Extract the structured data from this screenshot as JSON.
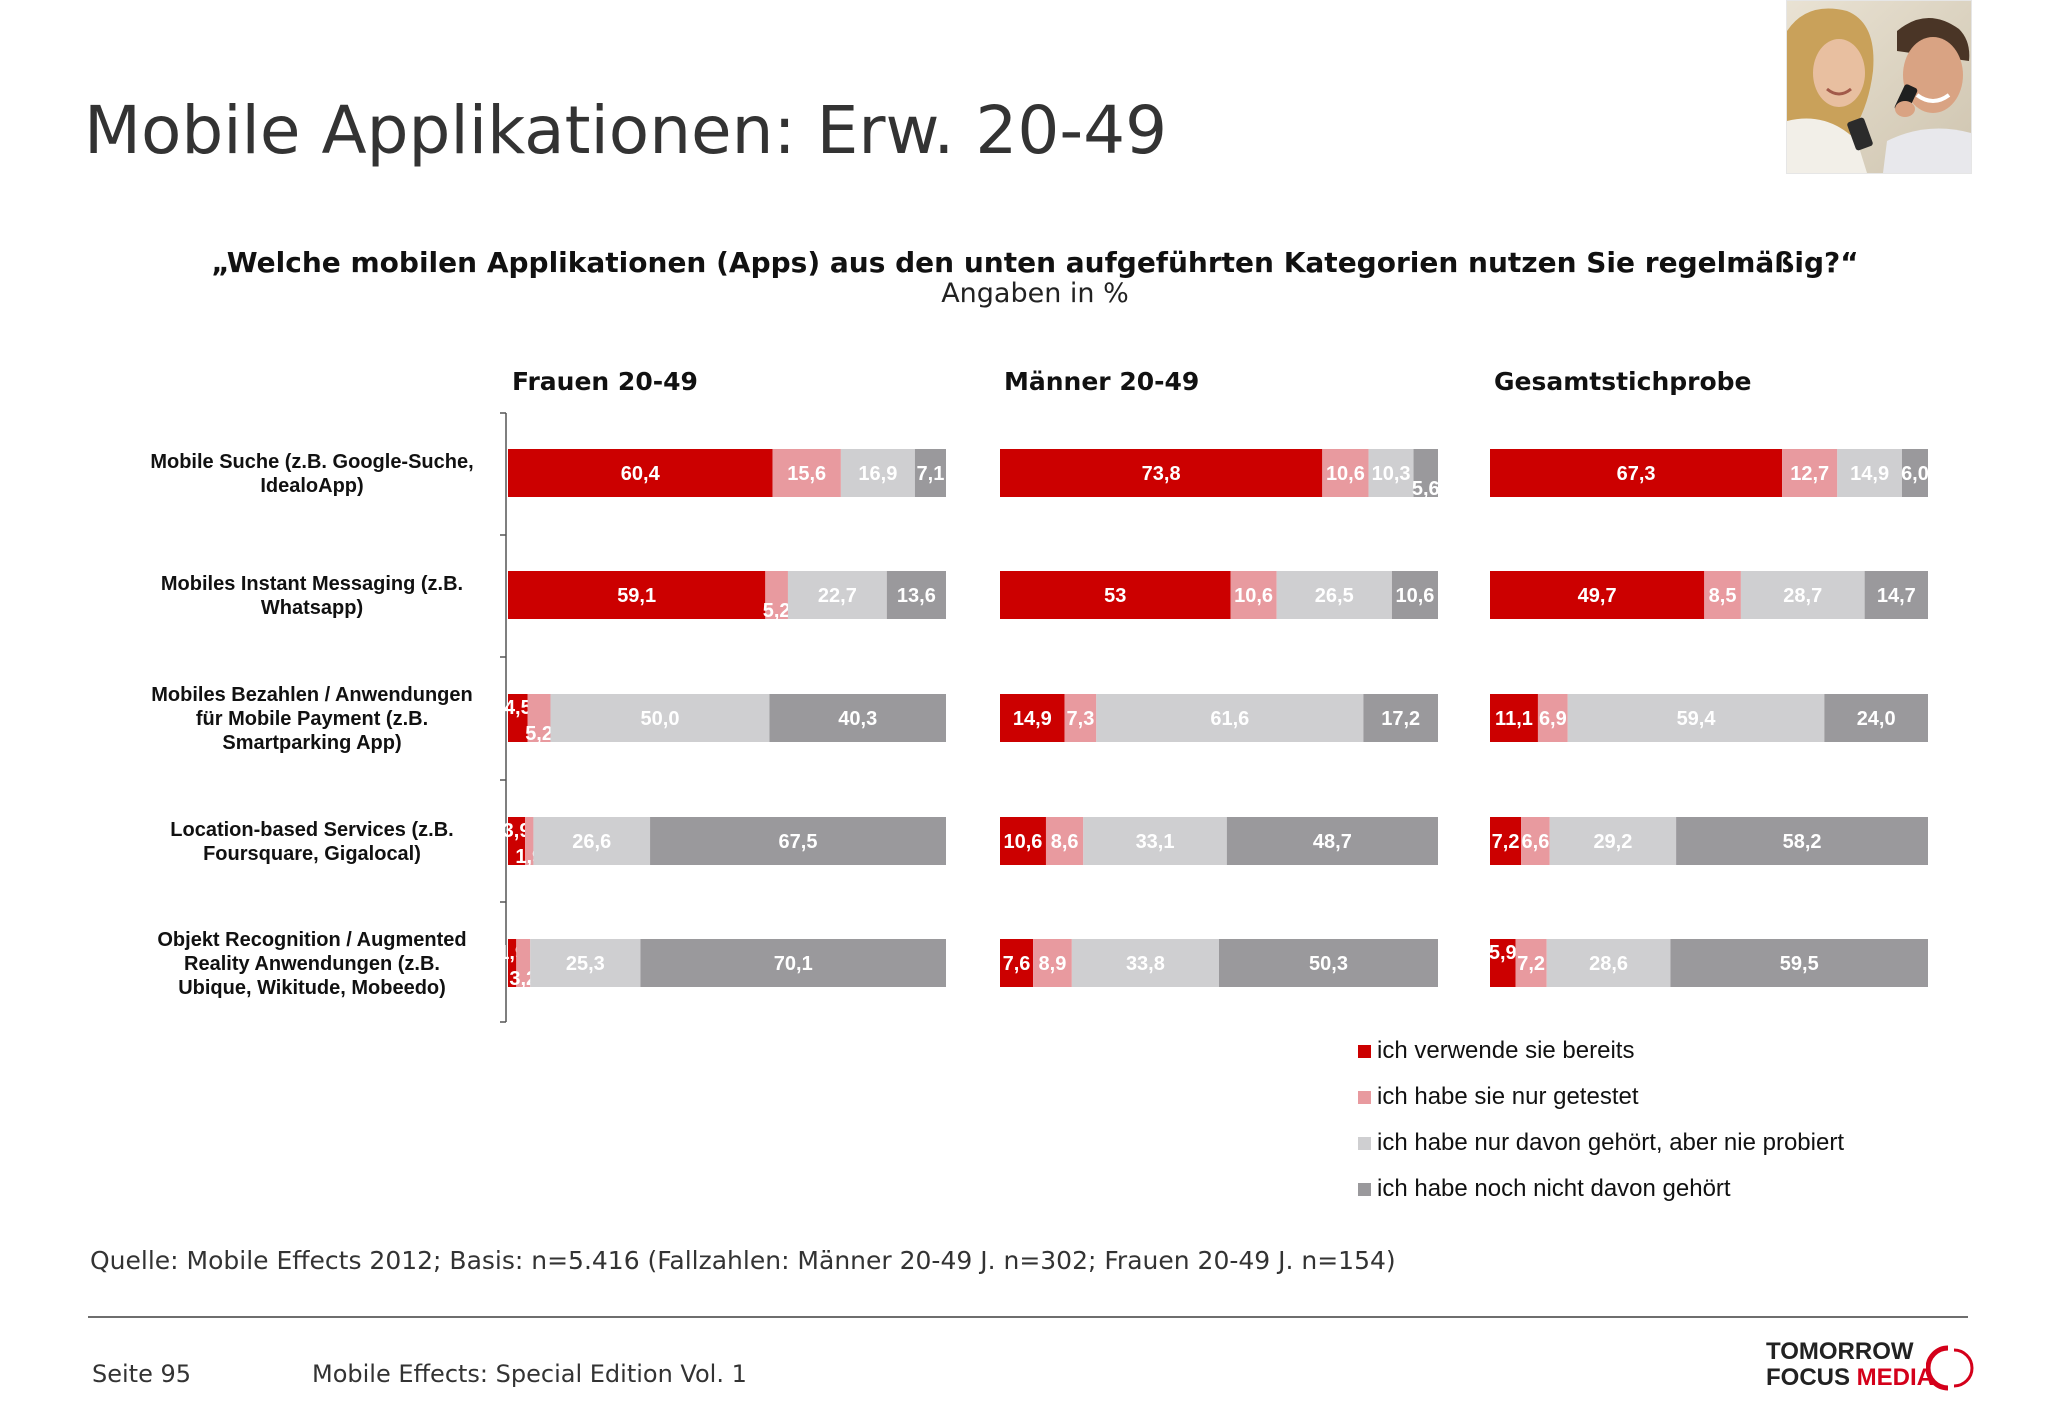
{
  "header": {
    "title": "Mobile Applikationen: Erw. 20-49"
  },
  "question": {
    "text": "„Welche mobilen Applikationen (Apps) aus den unten aufgeführten Kategorien nutzen Sie regelmäßig?“",
    "unit": "Angaben in %"
  },
  "icons": {
    "photo": "couple-with-phones-photo",
    "logo": "tomorrow-focus-media-logo"
  },
  "chart_data": {
    "type": "bar",
    "orientation": "horizontal",
    "stacked": true,
    "xlim": [
      0,
      100
    ],
    "categories": [
      "Mobile Suche (z.B. Google-Suche, IdealoApp)",
      "Mobiles Instant Messaging (z.B. Whatsapp)",
      "Mobiles Bezahlen / Anwendungen für Mobile Payment (z.B. Smartparking App)",
      "Location-based Services (z.B. Foursquare, Gigalocal)",
      "Objekt Recognition / Augmented Reality Anwendungen (z.B. Ubique, Wikitude, Mobeedo)"
    ],
    "category_lines": [
      [
        "Mobile Suche (z.B. Google-Suche,",
        "IdealoApp)"
      ],
      [
        "Mobiles Instant Messaging (z.B.",
        "Whatsapp)"
      ],
      [
        "Mobiles Bezahlen / Anwendungen",
        "für Mobile Payment (z.B.",
        "Smartparking App)"
      ],
      [
        "Location-based Services (z.B.",
        "Foursquare, Gigalocal)"
      ],
      [
        "Objekt Recognition / Augmented",
        "Reality Anwendungen (z.B.",
        "Ubique, Wikitude, Mobeedo)"
      ]
    ],
    "series": [
      {
        "name": "ich verwende sie bereits",
        "color": "#cc0000"
      },
      {
        "name": "ich habe sie nur getestet",
        "color": "#e89a9f"
      },
      {
        "name": "ich habe nur davon gehört, aber nie probiert",
        "color": "#cfcfd1"
      },
      {
        "name": "ich habe noch nicht davon gehört",
        "color": "#9a999c"
      }
    ],
    "groups": [
      {
        "name": "Frauen 20-49",
        "values": [
          [
            60.4,
            15.6,
            16.9,
            7.1
          ],
          [
            59.1,
            5.2,
            22.7,
            13.6
          ],
          [
            4.5,
            5.2,
            50.0,
            40.3
          ],
          [
            3.9,
            1.9,
            26.6,
            67.5
          ],
          [
            1.9,
            3.2,
            25.3,
            70.1
          ]
        ],
        "labels": [
          [
            "60,4",
            "15,6",
            "16,9",
            "7,1"
          ],
          [
            "59,1",
            "5,2",
            "22,7",
            "13,6"
          ],
          [
            "4,5",
            "5,2",
            "50,0",
            "40,3"
          ],
          [
            "3,9",
            "1,9",
            "26,6",
            "67,5"
          ],
          [
            "1,9",
            "3,2",
            "25,3",
            "70,1"
          ]
        ]
      },
      {
        "name": "Männer 20-49",
        "values": [
          [
            73.8,
            10.6,
            10.3,
            5.6
          ],
          [
            53.0,
            10.6,
            26.5,
            10.6
          ],
          [
            14.9,
            7.3,
            61.6,
            17.2
          ],
          [
            10.6,
            8.6,
            33.1,
            48.7
          ],
          [
            7.6,
            8.9,
            33.8,
            50.3
          ]
        ],
        "labels": [
          [
            "73,8",
            "10,6",
            "10,3",
            "5,6"
          ],
          [
            "53",
            "10,6",
            "26,5",
            "10,6"
          ],
          [
            "14,9",
            "7,3",
            "61,6",
            "17,2"
          ],
          [
            "10,6",
            "8,6",
            "33,1",
            "48,7"
          ],
          [
            "7,6",
            "8,9",
            "33,8",
            "50,3"
          ]
        ]
      },
      {
        "name": "Gesamtstichprobe",
        "values": [
          [
            67.3,
            12.7,
            14.9,
            6.0
          ],
          [
            49.7,
            8.5,
            28.7,
            14.7
          ],
          [
            11.1,
            6.9,
            59.4,
            24.0
          ],
          [
            7.2,
            6.6,
            29.2,
            58.2
          ],
          [
            5.9,
            7.2,
            28.6,
            59.5
          ]
        ],
        "labels": [
          [
            "67,3",
            "12,7",
            "14,9",
            "6,0"
          ],
          [
            "49,7",
            "8,5",
            "28,7",
            "14,7"
          ],
          [
            "11,1",
            "6,9",
            "59,4",
            "24,0"
          ],
          [
            "7,2",
            "6,6",
            "29,2",
            "58,2"
          ],
          [
            "5,9",
            "7,2",
            "28,6",
            "59,5"
          ]
        ]
      }
    ],
    "legend_position": "bottom-right"
  },
  "footer": {
    "source": "Quelle: Mobile Effects 2012; Basis: n=5.416 (Fallzahlen: Männer 20-49 J. n=302; Frauen 20-49 J. n=154)",
    "page": "Seite 95",
    "publication": "Mobile Effects: Special Edition Vol. 1",
    "logo_line1": "TOMORROW",
    "logo_line2a": "FOCUS",
    "logo_line2b": "MEDIA"
  }
}
